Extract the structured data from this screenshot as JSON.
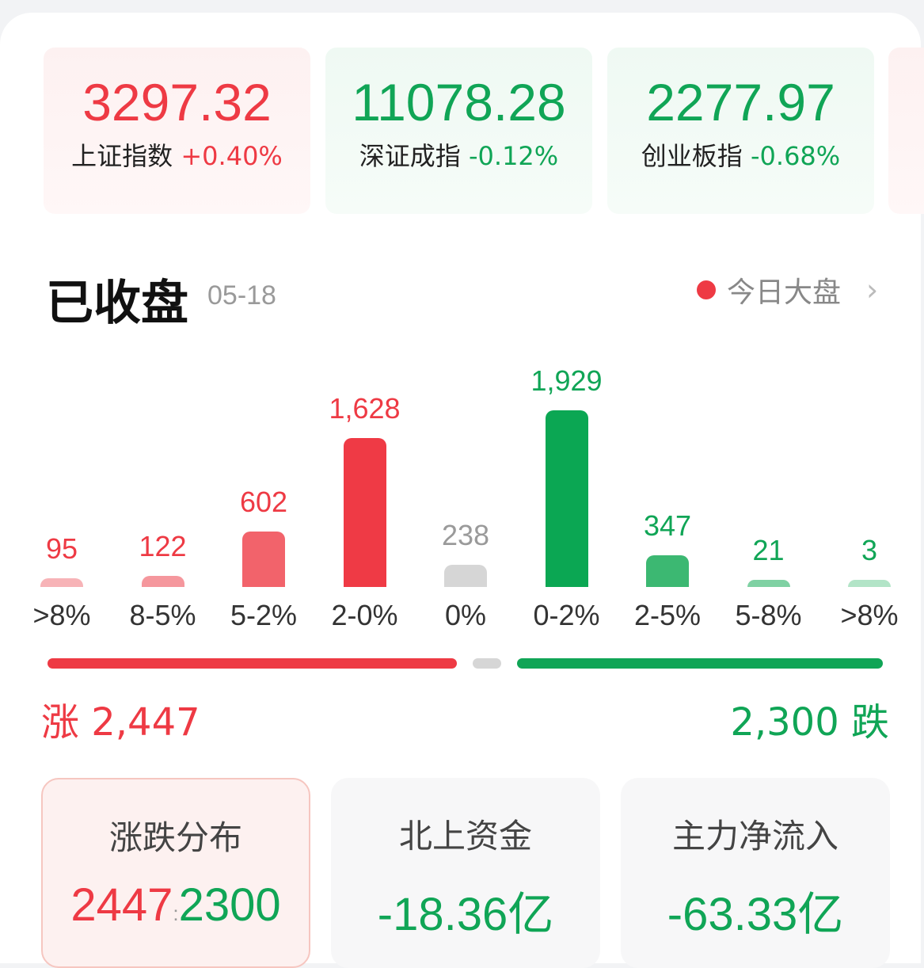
{
  "indices": [
    {
      "value": "3297.32",
      "name": "上证指数",
      "change": "+0.40%",
      "trend": "up"
    },
    {
      "value": "11078.28",
      "name": "深证成指",
      "change": "-0.12%",
      "trend": "down"
    },
    {
      "value": "2277.97",
      "name": "创业板指",
      "change": "-0.68%",
      "trend": "down"
    }
  ],
  "header": {
    "title": "已收盘",
    "date": "05-18",
    "link": "今日大盘"
  },
  "chart_data": {
    "type": "bar",
    "categories": [
      ">8%",
      "8-5%",
      "5-2%",
      "2-0%",
      "0%",
      "0-2%",
      "2-5%",
      "5-8%",
      ">8%"
    ],
    "values": [
      95,
      122,
      602,
      1628,
      238,
      1929,
      347,
      21,
      3
    ],
    "value_labels": [
      "95",
      "122",
      "602",
      "1,628",
      "238",
      "1,929",
      "347",
      "21",
      "3"
    ],
    "colors": [
      "#f7b3b7",
      "#f5979d",
      "#f2636b",
      "#ef3a45",
      "#d6d6d6",
      "#0ba753",
      "#3cb872",
      "#7fd1a3",
      "#b2e4c7"
    ],
    "label_colors": [
      "#ee3a44",
      "#ee3a44",
      "#ee3a44",
      "#ee3a44",
      "#9a9a9a",
      "#10a556",
      "#10a556",
      "#10a556",
      "#10a556"
    ]
  },
  "summary": {
    "up_label": "涨 2,447",
    "down_label": "2,300 跌",
    "up": 2447,
    "flat": 238,
    "down": 2300
  },
  "bottom_cards": [
    {
      "title": "涨跌分布",
      "up": "2447",
      "sep": ":",
      "down": "2300"
    },
    {
      "title": "北上资金",
      "value": "-18.36亿"
    },
    {
      "title": "主力净流入",
      "value": "-63.33亿"
    }
  ],
  "colors": {
    "up": "#ee3a44",
    "down": "#10a556"
  }
}
